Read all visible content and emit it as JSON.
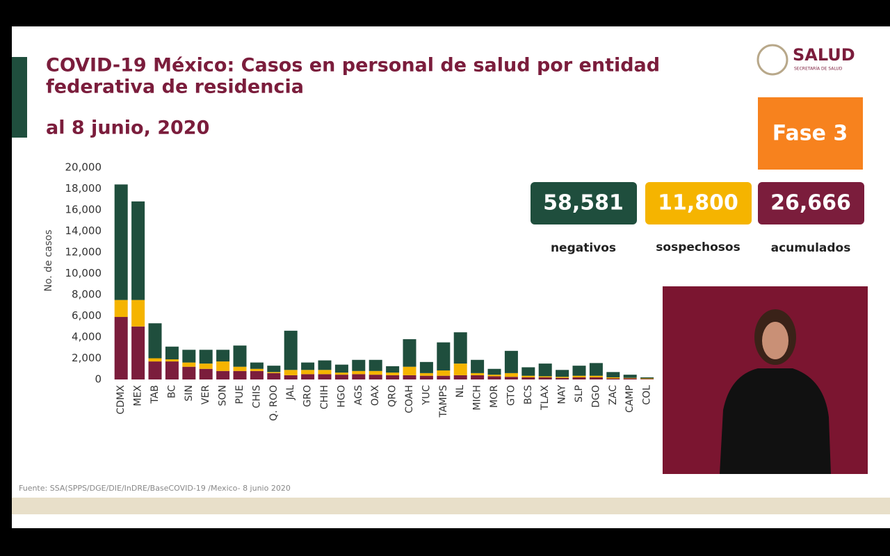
{
  "header": {
    "title_line1": "COVID-19 México: Casos en personal de salud por entidad",
    "title_line2": "federativa de residencia",
    "date": "al 8 junio, 2020"
  },
  "logo": {
    "name": "SALUD",
    "subtitle": "SECRETARÍA DE SALUD"
  },
  "phase": "Fase 3",
  "summary": [
    {
      "number": "58,581",
      "label": "negativos"
    },
    {
      "number": "11,800",
      "label": "sospechosos"
    },
    {
      "number": "26,666",
      "label": "acumulados"
    }
  ],
  "source": "Fuente: SSA(SPPS/DGE/DIE/InDRE/BaseCOVID-19 /Mexico- 8 junio 2020",
  "chart_data": {
    "type": "bar",
    "stacked": true,
    "y_label": "No. de casos",
    "categories": [
      "CDMX",
      "MEX",
      "TAB",
      "BC",
      "SIN",
      "VER",
      "SON",
      "PUE",
      "CHIS",
      "Q. ROO",
      "JAL",
      "GRO",
      "CHIH",
      "HGO",
      "AGS",
      "OAX",
      "QRO",
      "COAH",
      "YUC",
      "TAMPS",
      "NL",
      "MICH",
      "MOR",
      "GTO",
      "BCS",
      "TLAX",
      "NAY",
      "SLP",
      "DGO",
      "ZAC",
      "CAMP",
      "COL"
    ],
    "series": [
      {
        "color": "#7b1d3c",
        "values": [
          5900,
          5000,
          1700,
          1700,
          1200,
          1000,
          800,
          800,
          800,
          600,
          400,
          500,
          500,
          450,
          500,
          450,
          400,
          400,
          350,
          350,
          400,
          400,
          300,
          250,
          200,
          200,
          150,
          200,
          200,
          100,
          100,
          50
        ]
      },
      {
        "color": "#f5b400",
        "values": [
          1600,
          2500,
          300,
          200,
          400,
          500,
          900,
          400,
          200,
          100,
          500,
          400,
          400,
          200,
          300,
          350,
          250,
          800,
          250,
          500,
          1100,
          200,
          150,
          350,
          150,
          100,
          100,
          150,
          150,
          100,
          50,
          50
        ]
      },
      {
        "color": "#1f4e3d",
        "values": [
          10900,
          9300,
          3300,
          1200,
          1200,
          1300,
          1100,
          2000,
          600,
          600,
          3700,
          700,
          900,
          750,
          1050,
          1050,
          600,
          2600,
          1050,
          2650,
          2950,
          1250,
          550,
          2100,
          800,
          1200,
          650,
          950,
          1200,
          500,
          300,
          100
        ]
      }
    ],
    "ylim": [
      0,
      20000
    ],
    "yticks": [
      0,
      {
        "value": 2000,
        "label": "2,000"
      },
      {
        "value": 4000,
        "label": "4,000"
      },
      {
        "value": 6000,
        "label": "6,000"
      },
      {
        "value": 8000,
        "label": "8,000"
      },
      {
        "value": 10000,
        "label": "10,000"
      },
      {
        "value": 12000,
        "label": "12,000"
      },
      {
        "value": 14000,
        "label": "14,000"
      },
      {
        "value": 16000,
        "label": "16,000"
      },
      {
        "value": 18000,
        "label": "18,000"
      },
      {
        "value": 20000,
        "label": "20,000"
      }
    ]
  }
}
